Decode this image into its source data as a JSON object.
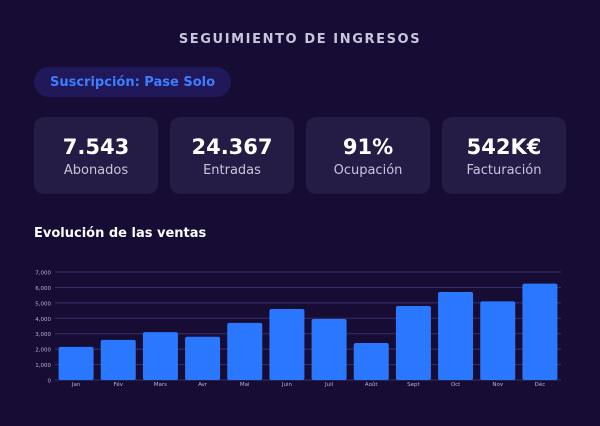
{
  "header": {
    "title": "SEGUIMIENTO DE INGRESOS"
  },
  "filter": {
    "label": "Suscripción: Pase Solo"
  },
  "kpis": [
    {
      "value": "7.543",
      "label": "Abonados"
    },
    {
      "value": "24.367",
      "label": "Entradas"
    },
    {
      "value": "91%",
      "label": "Ocupación"
    },
    {
      "value": "542K€",
      "label": "Facturación"
    }
  ],
  "colors": {
    "background": "#170c33",
    "card": "#241c44",
    "pill": "#21185a",
    "accent": "#2a78ff",
    "grid": "#3a2f6b"
  },
  "chart_data": {
    "type": "bar",
    "title": "Evolución de las ventas",
    "categories": [
      "Jan",
      "Fév",
      "Mars",
      "Avr",
      "Mai",
      "Juin",
      "Juil",
      "Août",
      "Sept",
      "Oct",
      "Nov",
      "Déc"
    ],
    "values": [
      2150,
      2600,
      3100,
      2800,
      3700,
      4600,
      3950,
      2400,
      4800,
      5700,
      5100,
      6250
    ],
    "ylim": [
      0,
      7000
    ],
    "yticks": [
      0,
      1000,
      2000,
      3000,
      4000,
      5000,
      6000,
      7000
    ],
    "ytick_labels": [
      "0",
      "1,000",
      "2,000",
      "3,000",
      "4,000",
      "5,000",
      "6,000",
      "7,000"
    ],
    "grid": true,
    "legend": "none"
  }
}
